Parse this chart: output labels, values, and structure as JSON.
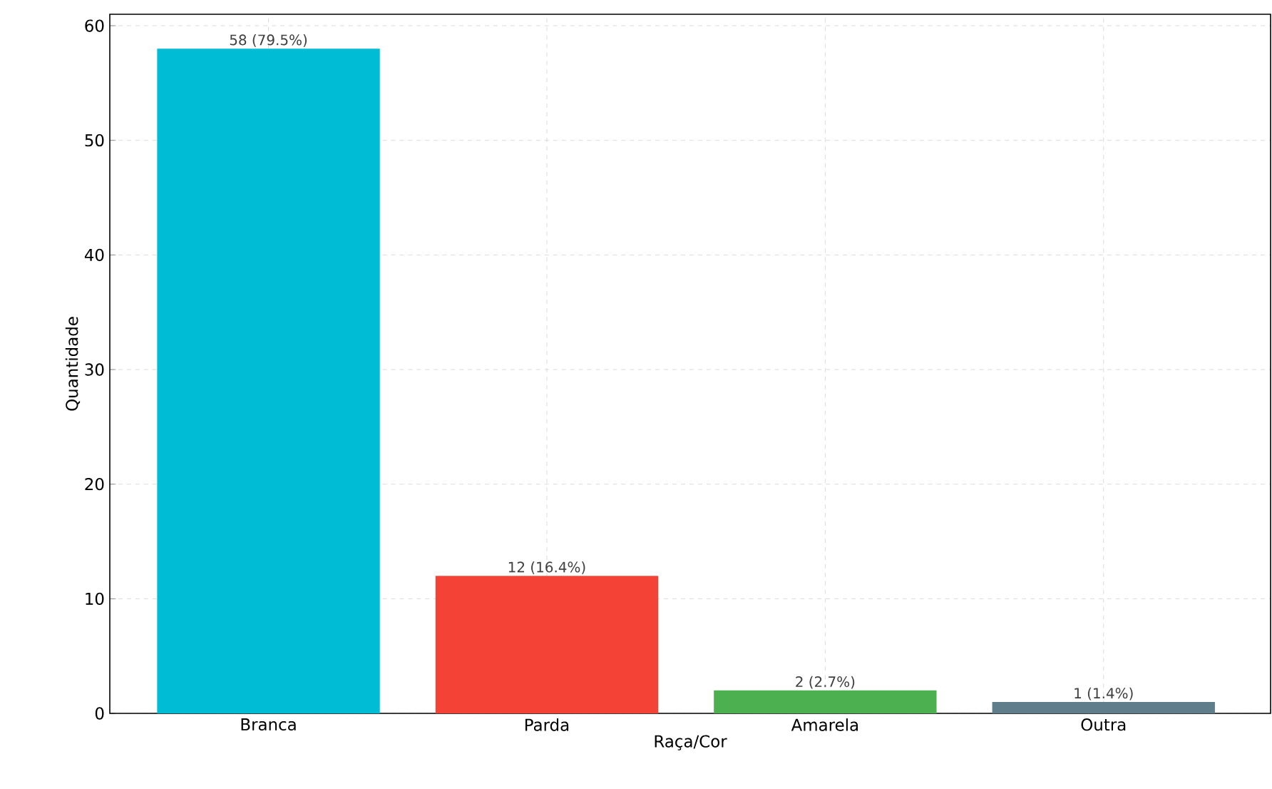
{
  "chart_data": {
    "type": "bar",
    "xlabel": "Raça/Cor",
    "ylabel": "Quantidade",
    "categories": [
      "Branca",
      "Parda",
      "Amarela",
      "Outra"
    ],
    "values": [
      58,
      12,
      2,
      1
    ],
    "colors": [
      "#00bcd4",
      "#f44336",
      "#4caf50",
      "#607d8b"
    ],
    "value_labels": [
      "58 (79.5%)",
      "12 (16.4%)",
      "2 (2.7%)",
      "1 (1.4%)"
    ],
    "ylim": [
      0,
      61
    ],
    "yticks": [
      0,
      10,
      20,
      30,
      40,
      50,
      60
    ],
    "grid": true
  }
}
